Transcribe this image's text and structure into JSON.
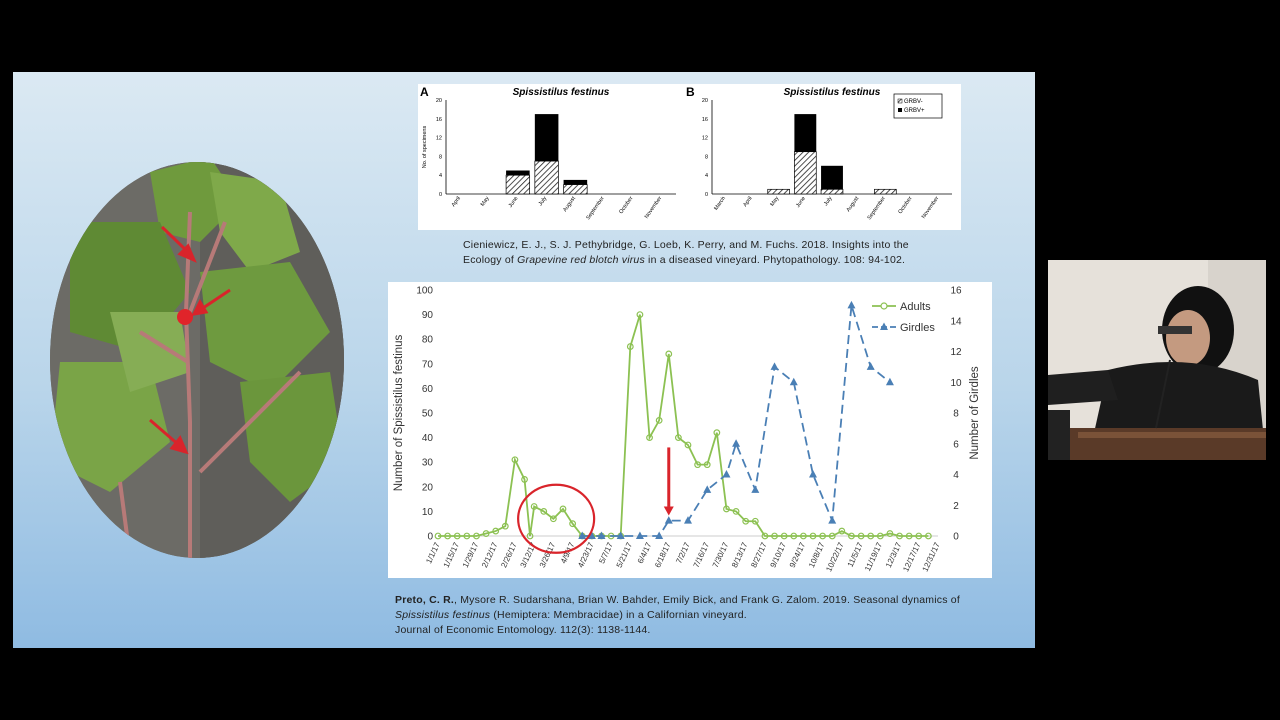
{
  "chart_data": [
    {
      "panel": "A",
      "type": "bar",
      "title": "Spissistilus festinus",
      "ylabel": "No. of specimens",
      "categories": [
        "April",
        "May",
        "June",
        "July",
        "August",
        "September",
        "October",
        "November"
      ],
      "series": [
        {
          "name": "GRBV-",
          "values": [
            0,
            0,
            4,
            7,
            2,
            0,
            0,
            0
          ]
        },
        {
          "name": "GRBV+",
          "values": [
            0,
            0,
            1,
            10,
            1,
            0,
            0,
            0
          ]
        }
      ],
      "ylim": [
        0,
        20
      ],
      "yticks": [
        "0",
        "4",
        "8",
        "12",
        "16",
        "20"
      ]
    },
    {
      "panel": "B",
      "type": "bar",
      "title": "Spissistilus festinus",
      "categories": [
        "March",
        "April",
        "May",
        "June",
        "July",
        "August",
        "September",
        "October",
        "November"
      ],
      "series": [
        {
          "name": "GRBV-",
          "values": [
            0,
            0,
            1,
            9,
            1,
            0,
            1,
            0,
            0
          ]
        },
        {
          "name": "GRBV+",
          "values": [
            0,
            0,
            0,
            8,
            5,
            0,
            0,
            0,
            0
          ]
        }
      ],
      "ylim": [
        0,
        20
      ],
      "yticks": [
        "0",
        "4",
        "8",
        "12",
        "16",
        "20"
      ],
      "legend": [
        "GRBV-",
        "GRBV+"
      ]
    },
    {
      "type": "line",
      "ylabel": "Number of Spissistilus festinus",
      "y2label": "Number of Girdles",
      "x": [
        "1/1/17",
        "1/15/17",
        "1/29/17",
        "2/12/17",
        "2/26/17",
        "3/12/17",
        "3/26/17",
        "4/9/17",
        "4/23/17",
        "5/7/17",
        "5/21/17",
        "6/4/17",
        "6/18/17",
        "7/2/17",
        "7/16/17",
        "7/30/17",
        "8/13/17",
        "8/27/17",
        "9/10/17",
        "9/24/17",
        "10/8/17",
        "10/22/17",
        "11/5/17",
        "11/19/17",
        "12/3/17",
        "12/17/17",
        "12/31/17"
      ],
      "ylim": [
        0,
        100
      ],
      "y2lim": [
        0,
        16
      ],
      "yticks": [
        "0",
        "10",
        "20",
        "30",
        "40",
        "50",
        "60",
        "70",
        "80",
        "90",
        "100"
      ],
      "y2ticks": [
        "0",
        "2",
        "4",
        "6",
        "8",
        "10",
        "12",
        "14",
        "16"
      ],
      "legend": [
        "Adults",
        "Girdles"
      ],
      "series": [
        {
          "name": "Adults",
          "points": [
            [
              0,
              0
            ],
            [
              7,
              0
            ],
            [
              14,
              0
            ],
            [
              21,
              0
            ],
            [
              28,
              0
            ],
            [
              35,
              1
            ],
            [
              42,
              2
            ],
            [
              49,
              4
            ],
            [
              56,
              31
            ],
            [
              63,
              23
            ],
            [
              67,
              0
            ],
            [
              70,
              12
            ],
            [
              77,
              10
            ],
            [
              84,
              7
            ],
            [
              91,
              11
            ],
            [
              98,
              5
            ],
            [
              105,
              0
            ],
            [
              112,
              0
            ],
            [
              119,
              0
            ],
            [
              126,
              0
            ],
            [
              133,
              0
            ],
            [
              140,
              77
            ],
            [
              147,
              90
            ],
            [
              154,
              40
            ],
            [
              161,
              47
            ],
            [
              168,
              74
            ],
            [
              175,
              40
            ],
            [
              182,
              37
            ],
            [
              189,
              29
            ],
            [
              196,
              29
            ],
            [
              203,
              42
            ],
            [
              210,
              11
            ],
            [
              217,
              10
            ],
            [
              224,
              6
            ],
            [
              231,
              6
            ],
            [
              238,
              0
            ],
            [
              245,
              0
            ],
            [
              252,
              0
            ],
            [
              259,
              0
            ],
            [
              266,
              0
            ],
            [
              273,
              0
            ],
            [
              280,
              0
            ],
            [
              287,
              0
            ],
            [
              294,
              2
            ],
            [
              301,
              0
            ],
            [
              308,
              0
            ],
            [
              315,
              0
            ],
            [
              322,
              0
            ],
            [
              329,
              1
            ],
            [
              336,
              0
            ],
            [
              343,
              0
            ],
            [
              350,
              0
            ],
            [
              357,
              0
            ]
          ]
        },
        {
          "name": "Girdles",
          "points": [
            [
              105,
              0
            ],
            [
              112,
              0
            ],
            [
              119,
              0
            ],
            [
              133,
              0
            ],
            [
              147,
              0
            ],
            [
              161,
              0
            ],
            [
              168,
              1
            ],
            [
              182,
              1
            ],
            [
              196,
              3
            ],
            [
              210,
              4
            ],
            [
              217,
              6
            ],
            [
              231,
              3
            ],
            [
              245,
              11
            ],
            [
              259,
              10
            ],
            [
              273,
              4
            ],
            [
              287,
              1
            ],
            [
              301,
              15
            ],
            [
              315,
              11
            ],
            [
              329,
              10
            ]
          ]
        }
      ]
    }
  ],
  "citations": {
    "cite1_line1": "Cieniewicz, E. J., S. J. Pethybridge, G. Loeb, K. Perry, and M. Fuchs. 2018. Insights into the",
    "cite1_line2a": "Ecology of ",
    "cite1_line2b": "Grapevine red blotch virus",
    "cite1_line2c": " in a diseased vineyard. Phytopathology. 108: 94-102.",
    "cite2_author": "Preto, C. R.",
    "cite2_line1": ", Mysore R. Sudarshana, Brian W. Bahder, Emily Bick, and Frank G. Zalom. 2019. Seasonal dynamics of",
    "cite2_line2a": "Spissistilus festinus",
    "cite2_line2b": " (Hemiptera: Membracidae) in a Californian vineyard.",
    "cite2_line3": "Journal of Economic Entomology. 112(3): 1138-1144."
  },
  "colors": {
    "adults": "#8cc152",
    "girdles": "#4a7fb5",
    "arrow": "#d9242b",
    "circle": "#d9242b"
  }
}
